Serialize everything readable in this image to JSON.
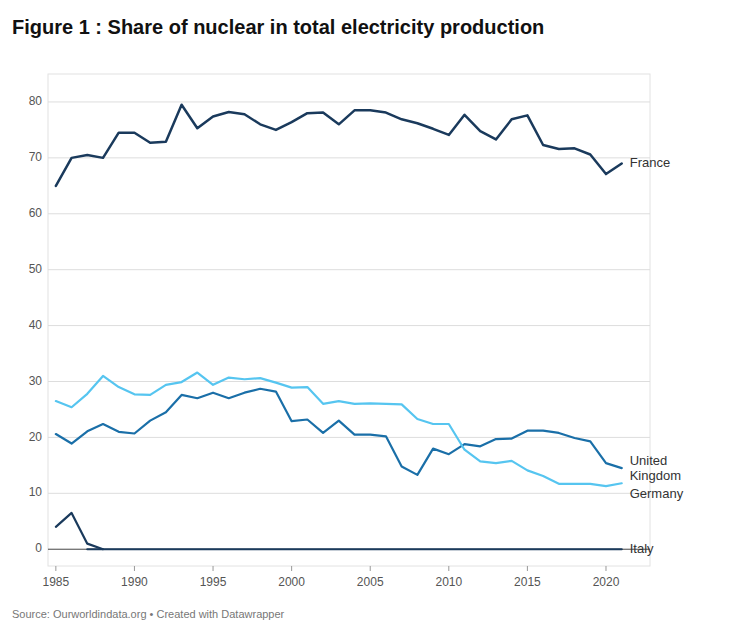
{
  "chart_data": {
    "type": "line",
    "title": "Figure 1 : Share of nuclear in total electricity production",
    "annotations": [
      "Source: Ourworldindata.org • Created with Datawrapper"
    ],
    "x": [
      1985,
      1986,
      1987,
      1988,
      1989,
      1990,
      1991,
      1992,
      1993,
      1994,
      1995,
      1996,
      1997,
      1998,
      1999,
      2000,
      2001,
      2002,
      2003,
      2004,
      2005,
      2006,
      2007,
      2008,
      2009,
      2010,
      2011,
      2012,
      2013,
      2014,
      2015,
      2016,
      2017,
      2018,
      2019,
      2020,
      2021
    ],
    "series": [
      {
        "name": "France",
        "color": "#1a3a5c",
        "values": [
          65.0,
          70.0,
          70.5,
          70.0,
          74.5,
          74.5,
          72.7,
          72.9,
          79.5,
          75.3,
          77.4,
          78.2,
          77.8,
          76.0,
          75.0,
          76.4,
          78.0,
          78.1,
          76.0,
          78.5,
          78.5,
          78.1,
          76.9,
          76.2,
          75.2,
          74.1,
          77.7,
          74.8,
          73.3,
          76.9,
          77.6,
          72.3,
          71.6,
          71.7,
          70.6,
          67.1,
          69.0
        ]
      },
      {
        "name": "United\nKingdom",
        "color": "#1a6fa8",
        "values": [
          20.6,
          18.9,
          21.1,
          22.4,
          21.0,
          20.7,
          23.0,
          24.5,
          27.6,
          27.0,
          28.0,
          27.0,
          28.0,
          28.7,
          28.2,
          22.9,
          23.2,
          20.8,
          23.0,
          20.5,
          20.5,
          20.2,
          14.8,
          13.3,
          18.0,
          17.0,
          18.8,
          18.4,
          19.7,
          19.8,
          21.2,
          21.2,
          20.8,
          19.9,
          19.3,
          15.4,
          14.5
        ]
      },
      {
        "name": "Germany",
        "color": "#56c5f0",
        "values": [
          26.5,
          25.4,
          27.8,
          31.0,
          29.0,
          27.7,
          27.6,
          29.4,
          29.9,
          31.6,
          29.4,
          30.7,
          30.4,
          30.6,
          29.8,
          28.9,
          29.0,
          26.0,
          26.5,
          26.0,
          26.1,
          26.0,
          25.9,
          23.3,
          22.4,
          22.4,
          17.8,
          15.7,
          15.4,
          15.8,
          14.1,
          13.1,
          11.7,
          11.7,
          11.7,
          11.3,
          11.8
        ]
      },
      {
        "color": "#1a3a5c",
        "x": [
          1985,
          1986,
          1987,
          1988
        ],
        "values": [
          4.0,
          6.5,
          1.0,
          0.0
        ]
      },
      {
        "name": "Italy",
        "color": "#1a3a5c",
        "x": [
          1987,
          2021
        ],
        "values": [
          0.0,
          0.0
        ]
      }
    ],
    "xlim": [
      1984.5,
      2022.8
    ],
    "xticks": [
      1985,
      1990,
      1995,
      2000,
      2005,
      2010,
      2015,
      2020
    ],
    "ylim": [
      -3,
      85
    ],
    "yticks": [
      0,
      10,
      20,
      30,
      40,
      50,
      60,
      70,
      80
    ],
    "grid": true
  }
}
